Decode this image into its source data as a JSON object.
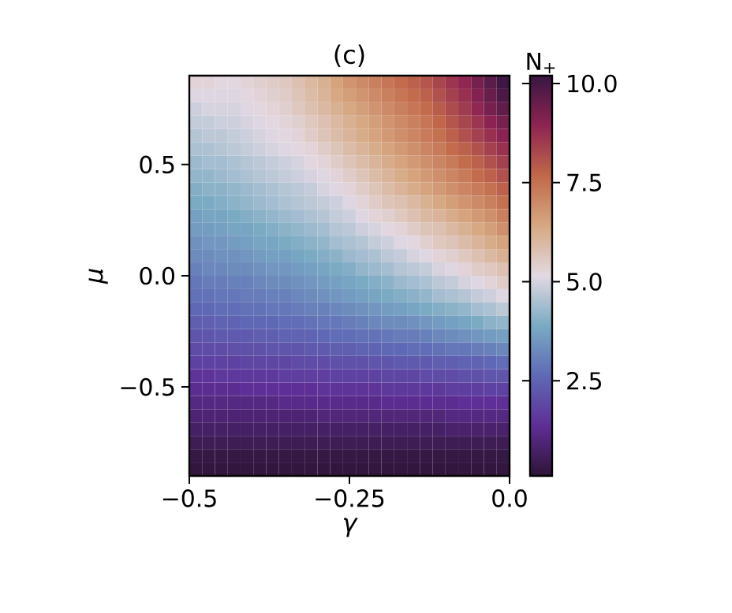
{
  "chart_data": {
    "type": "heatmap",
    "title": "(c)",
    "xlabel": "γ",
    "ylabel": "μ",
    "clabel": "N$_{+}$",
    "xlim": [
      -0.5,
      0
    ],
    "ylim": [
      -0.9,
      0.9
    ],
    "xticks": [
      {
        "value": -0.5,
        "label": "−0.5"
      },
      {
        "value": -0.25,
        "label": "−0.25"
      },
      {
        "value": 0,
        "label": "0.0"
      }
    ],
    "yticks": [
      {
        "value": -0.5,
        "label": "−0.5"
      },
      {
        "value": 0,
        "label": "0.0"
      },
      {
        "value": 0.5,
        "label": "0.5"
      }
    ],
    "clim": [
      0.1,
      10.2
    ],
    "cticks": [
      {
        "value": 2.5,
        "label": "2.5"
      },
      {
        "value": 5,
        "label": "5.0"
      },
      {
        "value": 7.5,
        "label": "7.5"
      },
      {
        "value": 10,
        "label": "10.0"
      }
    ],
    "cells": [
      [
        5.3,
        5.3,
        5.2,
        5.2,
        5.3,
        5.4,
        5.5,
        5.6,
        5.8,
        6.0,
        6.2,
        6.5,
        6.8,
        7.0,
        7.2,
        7.4,
        7.6,
        7.8,
        8.0,
        8.3,
        8.6,
        8.9,
        9.3,
        9.7,
        10.1
      ],
      [
        5.1,
        5.1,
        5.1,
        5.1,
        5.2,
        5.3,
        5.4,
        5.5,
        5.7,
        5.9,
        6.1,
        6.4,
        6.6,
        6.8,
        7.0,
        7.2,
        7.4,
        7.6,
        7.8,
        8.1,
        8.4,
        8.7,
        9.1,
        9.5,
        9.9
      ],
      [
        4.9,
        5.0,
        5.0,
        5.0,
        5.1,
        5.2,
        5.3,
        5.4,
        5.6,
        5.8,
        6.0,
        6.2,
        6.4,
        6.6,
        6.8,
        7.0,
        7.2,
        7.4,
        7.6,
        7.9,
        8.2,
        8.5,
        8.9,
        9.3,
        9.6
      ],
      [
        4.8,
        4.8,
        4.9,
        4.9,
        5.0,
        5.1,
        5.2,
        5.3,
        5.4,
        5.6,
        5.8,
        6.0,
        6.2,
        6.4,
        6.6,
        6.8,
        7.0,
        7.2,
        7.4,
        7.7,
        8.0,
        8.3,
        8.6,
        9.0,
        9.3
      ],
      [
        4.6,
        4.7,
        4.7,
        4.8,
        4.9,
        5.0,
        5.1,
        5.2,
        5.3,
        5.5,
        5.7,
        5.9,
        6.1,
        6.3,
        6.5,
        6.7,
        6.9,
        7.1,
        7.3,
        7.5,
        7.8,
        8.1,
        8.4,
        8.7,
        9.0
      ],
      [
        4.5,
        4.5,
        4.6,
        4.7,
        4.8,
        4.9,
        5.0,
        5.1,
        5.2,
        5.3,
        5.5,
        5.7,
        5.9,
        6.1,
        6.3,
        6.5,
        6.7,
        6.9,
        7.1,
        7.3,
        7.6,
        7.8,
        8.1,
        8.4,
        8.7
      ],
      [
        4.3,
        4.4,
        4.4,
        4.5,
        4.6,
        4.7,
        4.8,
        4.9,
        5.0,
        5.2,
        5.3,
        5.5,
        5.7,
        5.9,
        6.1,
        6.3,
        6.5,
        6.7,
        6.9,
        7.1,
        7.3,
        7.6,
        7.8,
        8.1,
        8.4
      ],
      [
        4.2,
        4.2,
        4.3,
        4.4,
        4.5,
        4.6,
        4.7,
        4.8,
        4.9,
        5.0,
        5.1,
        5.3,
        5.5,
        5.7,
        5.9,
        6.1,
        6.3,
        6.5,
        6.7,
        6.9,
        7.1,
        7.3,
        7.6,
        7.8,
        8.1
      ],
      [
        4.0,
        4.1,
        4.1,
        4.2,
        4.3,
        4.4,
        4.5,
        4.6,
        4.7,
        4.8,
        5.0,
        5.1,
        5.3,
        5.5,
        5.7,
        5.9,
        6.1,
        6.3,
        6.5,
        6.7,
        6.9,
        7.1,
        7.3,
        7.5,
        7.8
      ],
      [
        3.9,
        3.9,
        4.0,
        4.1,
        4.2,
        4.3,
        4.4,
        4.5,
        4.6,
        4.7,
        4.8,
        4.9,
        5.1,
        5.3,
        5.5,
        5.7,
        5.8,
        6.0,
        6.2,
        6.4,
        6.6,
        6.8,
        7.0,
        7.2,
        7.5
      ],
      [
        3.7,
        3.8,
        3.8,
        3.9,
        4.0,
        4.1,
        4.2,
        4.3,
        4.4,
        4.5,
        4.6,
        4.8,
        4.9,
        5.1,
        5.3,
        5.4,
        5.6,
        5.8,
        6.0,
        6.1,
        6.3,
        6.5,
        6.7,
        6.9,
        7.2
      ],
      [
        3.6,
        3.6,
        3.7,
        3.8,
        3.8,
        3.9,
        4.0,
        4.1,
        4.2,
        4.3,
        4.4,
        4.6,
        4.7,
        4.9,
        5.0,
        5.2,
        5.3,
        5.5,
        5.7,
        5.8,
        6.0,
        6.2,
        6.4,
        6.6,
        6.9
      ],
      [
        3.4,
        3.5,
        3.5,
        3.6,
        3.7,
        3.8,
        3.8,
        3.9,
        4.0,
        4.1,
        4.2,
        4.4,
        4.5,
        4.6,
        4.8,
        4.9,
        5.1,
        5.2,
        5.4,
        5.6,
        5.7,
        5.9,
        6.1,
        6.3,
        6.5
      ],
      [
        3.3,
        3.3,
        3.4,
        3.4,
        3.5,
        3.6,
        3.7,
        3.7,
        3.8,
        3.9,
        4.0,
        4.1,
        4.3,
        4.4,
        4.5,
        4.7,
        4.8,
        5.0,
        5.1,
        5.3,
        5.4,
        5.6,
        5.8,
        6.0,
        6.2
      ],
      [
        3.1,
        3.2,
        3.2,
        3.3,
        3.3,
        3.4,
        3.5,
        3.5,
        3.6,
        3.7,
        3.8,
        3.9,
        4.0,
        4.2,
        4.3,
        4.4,
        4.6,
        4.7,
        4.8,
        5.0,
        5.1,
        5.3,
        5.5,
        5.6,
        5.8
      ],
      [
        2.9,
        3.0,
        3.0,
        3.1,
        3.1,
        3.2,
        3.3,
        3.3,
        3.4,
        3.5,
        3.6,
        3.7,
        3.8,
        3.9,
        4.0,
        4.1,
        4.3,
        4.4,
        4.5,
        4.7,
        4.8,
        5.0,
        5.1,
        5.3,
        5.5
      ],
      [
        2.8,
        2.8,
        2.9,
        2.9,
        3.0,
        3.0,
        3.1,
        3.1,
        3.2,
        3.3,
        3.4,
        3.5,
        3.6,
        3.7,
        3.8,
        3.9,
        4.0,
        4.1,
        4.2,
        4.4,
        4.5,
        4.6,
        4.8,
        4.9,
        5.1
      ],
      [
        2.6,
        2.6,
        2.7,
        2.7,
        2.8,
        2.8,
        2.9,
        2.9,
        3.0,
        3.1,
        3.1,
        3.2,
        3.3,
        3.4,
        3.5,
        3.6,
        3.7,
        3.8,
        3.9,
        4.0,
        4.1,
        4.2,
        4.4,
        4.5,
        4.7
      ],
      [
        2.4,
        2.4,
        2.5,
        2.5,
        2.6,
        2.6,
        2.6,
        2.7,
        2.7,
        2.8,
        2.9,
        2.9,
        3.0,
        3.1,
        3.2,
        3.3,
        3.3,
        3.4,
        3.5,
        3.6,
        3.7,
        3.8,
        3.9,
        4.1,
        4.2
      ],
      [
        2.2,
        2.2,
        2.3,
        2.3,
        2.3,
        2.4,
        2.4,
        2.5,
        2.5,
        2.5,
        2.6,
        2.7,
        2.7,
        2.8,
        2.8,
        2.9,
        3.0,
        3.0,
        3.1,
        3.2,
        3.3,
        3.4,
        3.5,
        3.6,
        3.7
      ],
      [
        2.0,
        2.0,
        2.0,
        2.1,
        2.1,
        2.1,
        2.2,
        2.2,
        2.2,
        2.3,
        2.3,
        2.4,
        2.4,
        2.5,
        2.5,
        2.6,
        2.6,
        2.7,
        2.7,
        2.8,
        2.9,
        2.9,
        3.0,
        3.1,
        3.2
      ],
      [
        1.8,
        1.8,
        1.8,
        1.8,
        1.9,
        1.9,
        1.9,
        1.9,
        2.0,
        2.0,
        2.0,
        2.1,
        2.1,
        2.1,
        2.2,
        2.2,
        2.3,
        2.3,
        2.3,
        2.4,
        2.4,
        2.5,
        2.5,
        2.6,
        2.7
      ],
      [
        1.5,
        1.5,
        1.6,
        1.6,
        1.6,
        1.6,
        1.6,
        1.7,
        1.7,
        1.7,
        1.7,
        1.8,
        1.8,
        1.8,
        1.8,
        1.9,
        1.9,
        1.9,
        2.0,
        2.0,
        2.0,
        2.1,
        2.1,
        2.2,
        2.2
      ],
      [
        1.3,
        1.3,
        1.3,
        1.3,
        1.4,
        1.4,
        1.4,
        1.4,
        1.4,
        1.4,
        1.5,
        1.5,
        1.5,
        1.5,
        1.5,
        1.6,
        1.6,
        1.6,
        1.6,
        1.6,
        1.7,
        1.7,
        1.7,
        1.8,
        1.8
      ],
      [
        1.1,
        1.1,
        1.1,
        1.1,
        1.1,
        1.1,
        1.1,
        1.2,
        1.2,
        1.2,
        1.2,
        1.2,
        1.2,
        1.2,
        1.2,
        1.3,
        1.3,
        1.3,
        1.3,
        1.3,
        1.3,
        1.4,
        1.4,
        1.4,
        1.4
      ],
      [
        0.9,
        0.9,
        0.9,
        0.9,
        0.9,
        0.9,
        0.9,
        0.9,
        0.9,
        0.9,
        1.0,
        1.0,
        1.0,
        1.0,
        1.0,
        1.0,
        1.0,
        1.0,
        1.0,
        1.0,
        1.1,
        1.1,
        1.1,
        1.1,
        1.1
      ],
      [
        0.7,
        0.7,
        0.7,
        0.7,
        0.7,
        0.7,
        0.7,
        0.7,
        0.7,
        0.7,
        0.7,
        0.7,
        0.7,
        0.7,
        0.7,
        0.7,
        0.7,
        0.7,
        0.7,
        0.7,
        0.8,
        0.8,
        0.8,
        0.8,
        0.8
      ],
      [
        0.5,
        0.5,
        0.5,
        0.5,
        0.5,
        0.5,
        0.5,
        0.5,
        0.5,
        0.5,
        0.5,
        0.5,
        0.5,
        0.5,
        0.5,
        0.5,
        0.5,
        0.5,
        0.5,
        0.5,
        0.5,
        0.5,
        0.5,
        0.5,
        0.5
      ],
      [
        0.3,
        0.3,
        0.3,
        0.3,
        0.3,
        0.3,
        0.3,
        0.3,
        0.3,
        0.3,
        0.3,
        0.3,
        0.3,
        0.3,
        0.3,
        0.3,
        0.3,
        0.3,
        0.3,
        0.3,
        0.3,
        0.3,
        0.3,
        0.3,
        0.3
      ],
      [
        0.2,
        0.2,
        0.2,
        0.2,
        0.2,
        0.2,
        0.2,
        0.2,
        0.2,
        0.2,
        0.2,
        0.2,
        0.2,
        0.2,
        0.2,
        0.2,
        0.2,
        0.2,
        0.2,
        0.2,
        0.2,
        0.2,
        0.2,
        0.2,
        0.2
      ]
    ]
  }
}
